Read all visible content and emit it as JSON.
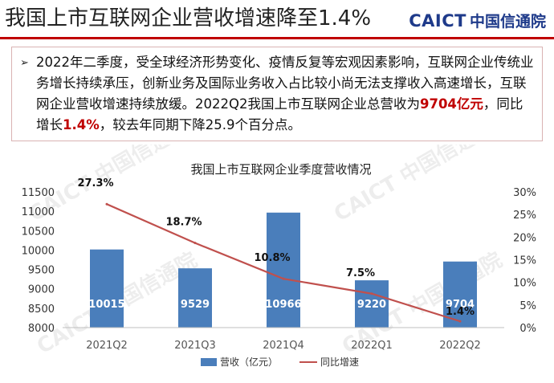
{
  "header": {
    "title": "我国上市互联网企业营收增速降至1.4%",
    "logo_en": "CAICT",
    "logo_cn": "中国信通院"
  },
  "summary": {
    "bullet": "➢",
    "text_1": "2022年二季度，受全球经济形势变化、疫情反复等宏观因素影响，互联网企业传统业务增长持续承压，创新业务及国际业务收入占比较小尚无法支撑收入高速增长，互联网企业营收增速持续放缓。2022Q2我国上市互联网企业总营收为",
    "highlight_1": "9704亿元",
    "text_2": "，同比增长",
    "highlight_2": "1.4%",
    "text_3": "，较去年同期下降25.9个百分点。"
  },
  "watermark": "CAICT 中国信通院",
  "chart_data": {
    "type": "bar",
    "title": "我国上市互联网企业季度营收情况",
    "categories": [
      "2021Q2",
      "2021Q3",
      "2021Q4",
      "2022Q1",
      "2022Q2"
    ],
    "series": [
      {
        "name": "营收（亿元）",
        "type": "bar",
        "axis": "left",
        "values": [
          10015,
          9529,
          10966,
          9220,
          9704
        ],
        "labels": [
          "10015",
          "9529",
          "10966",
          "9220",
          "9704"
        ]
      },
      {
        "name": "同比增速",
        "type": "line",
        "axis": "right",
        "values": [
          27.3,
          18.7,
          10.8,
          7.5,
          1.4
        ],
        "labels": [
          "27.3%",
          "18.7%",
          "10.8%",
          "7.5%",
          "1.4%"
        ]
      }
    ],
    "y_left": {
      "min": 8000,
      "max": 11500,
      "ticks": [
        "8000",
        "8500",
        "9000",
        "9500",
        "10000",
        "10500",
        "11000",
        "11500"
      ]
    },
    "y_right": {
      "min": 0,
      "max": 30,
      "ticks": [
        "0%",
        "5%",
        "10%",
        "15%",
        "20%",
        "25%",
        "30%"
      ]
    },
    "colors": {
      "bar": "#4a7ebb",
      "line": "#c0504d"
    },
    "legend_position": "bottom",
    "grid": false
  }
}
